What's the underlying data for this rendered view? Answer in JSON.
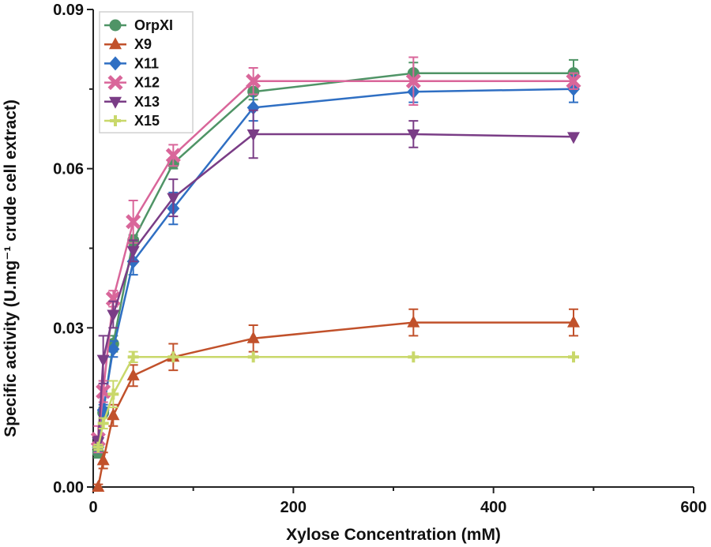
{
  "chart_data": {
    "type": "line",
    "title": "",
    "xlabel": "Xylose Concentration (mM)",
    "ylabel": "Specific activity (U.mg⁻¹ crude cell extract)",
    "xlim": [
      0,
      600
    ],
    "ylim": [
      0,
      0.09
    ],
    "xticks": [
      0,
      200,
      400,
      600
    ],
    "xtick_labels": [
      "0",
      "200",
      "400",
      "600"
    ],
    "yticks": [
      0,
      0.03,
      0.06,
      0.09
    ],
    "ytick_labels": [
      "0.00",
      "0.03",
      "0.06",
      "0.09"
    ],
    "grid": false,
    "legend_position": "top-left",
    "x": [
      5,
      10,
      20,
      40,
      80,
      160,
      320,
      480
    ],
    "series": [
      {
        "name": "OrpXI",
        "color": "#4f9466",
        "marker": "circle",
        "values": [
          0.0065,
          0.014,
          0.027,
          0.0465,
          0.061,
          0.0745,
          0.078,
          0.078
        ],
        "errors": [
          0.001,
          0.001,
          0.0015,
          0.001,
          0.001,
          0.0015,
          0.002,
          0.0025
        ]
      },
      {
        "name": "X9",
        "color": "#c1512b",
        "marker": "triangle-up",
        "values": [
          0.0,
          0.005,
          0.0135,
          0.021,
          0.0245,
          0.028,
          0.031,
          0.031
        ],
        "errors": [
          0.0005,
          0.0015,
          0.002,
          0.002,
          0.0025,
          0.0025,
          0.0025,
          0.0025
        ]
      },
      {
        "name": "X11",
        "color": "#2f6fc3",
        "marker": "diamond",
        "values": [
          0.0075,
          0.0145,
          0.026,
          0.0425,
          0.0525,
          0.0715,
          0.0745,
          0.075
        ],
        "errors": [
          0.001,
          0.001,
          0.0015,
          0.0025,
          0.003,
          0.0025,
          0.002,
          0.0025
        ]
      },
      {
        "name": "X12",
        "color": "#d9669a",
        "marker": "x",
        "values": [
          0.009,
          0.018,
          0.0355,
          0.05,
          0.0625,
          0.0765,
          0.0765,
          0.0765
        ],
        "errors": [
          0.0025,
          0.002,
          0.0015,
          0.004,
          0.002,
          0.0025,
          0.0045,
          0.0015
        ]
      },
      {
        "name": "X13",
        "color": "#7a3d86",
        "marker": "triangle-down",
        "values": [
          0.0085,
          0.024,
          0.0325,
          0.0445,
          0.0545,
          0.0665,
          0.0665,
          0.066
        ],
        "errors": [
          0.001,
          0.0045,
          0.0025,
          0.002,
          0.0035,
          0.0045,
          0.0025,
          0.0
        ]
      },
      {
        "name": "X15",
        "color": "#c9d86b",
        "marker": "plus",
        "values": [
          0.0075,
          0.012,
          0.0175,
          0.0245,
          0.0245,
          0.0245,
          0.0245,
          0.0245
        ],
        "errors": [
          0.0005,
          0.001,
          0.0025,
          0.001,
          0.0,
          0.0,
          0.0,
          0.0
        ]
      }
    ]
  }
}
